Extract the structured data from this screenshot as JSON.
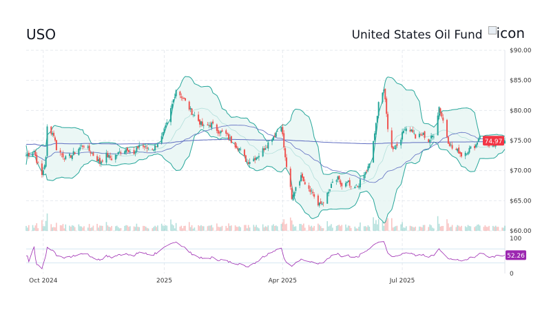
{
  "header": {
    "ticker": "USO",
    "fund_name": "United States Oil Fund",
    "logo_alt": "icon"
  },
  "chart_data": {
    "type": "candlestick",
    "indicators": [
      "Bollinger Bands (20)",
      "SMA 50",
      "SMA 200",
      "Volume",
      "RSI (14)"
    ],
    "x_range": [
      "2024-09-18",
      "2025-09-17"
    ],
    "x_ticks": [
      {
        "date": "2024-10-01",
        "label": "Oct 2024"
      },
      {
        "date": "2025-01-01",
        "label": "2025"
      },
      {
        "date": "2025-04-01",
        "label": "Apr 2025"
      },
      {
        "date": "2025-07-01",
        "label": "Jul 2025"
      }
    ],
    "y_range": [
      60,
      90
    ],
    "y_ticks": [
      "$90.00",
      "$85.00",
      "$80.00",
      "$75.00",
      "$70.00",
      "$65.00",
      "$60.00"
    ],
    "y_tick_values": [
      90,
      85,
      80,
      75,
      70,
      65,
      60
    ],
    "rsi_range": [
      0,
      100
    ],
    "rsi_ticks": [
      "100",
      "0"
    ],
    "rsi_levels": [
      70,
      30
    ],
    "last_price": "74.97",
    "last_rsi": "52.26",
    "grid": true,
    "colors": {
      "up": "#26a69a",
      "down": "#ef5350",
      "band": "#26a69a",
      "band_fill": "#e6f5f2",
      "sma": "#5c6bc0",
      "rsi": "#9c27b0",
      "price_tag": "#f23645",
      "rsi_tag": "#9c27b0"
    },
    "closes": [
      [
        "2024-09-18",
        72.6
      ],
      [
        "2024-09-24",
        73.2
      ],
      [
        "2024-09-27",
        70.9
      ],
      [
        "2024-09-30",
        69.2
      ],
      [
        "2024-10-03",
        72.0
      ],
      [
        "2024-10-04",
        77.2
      ],
      [
        "2024-10-09",
        76.0
      ],
      [
        "2024-10-11",
        73.7
      ],
      [
        "2024-10-18",
        72.0
      ],
      [
        "2024-10-23",
        72.6
      ],
      [
        "2024-10-28",
        73.7
      ],
      [
        "2024-11-01",
        74.3
      ],
      [
        "2024-11-08",
        72.6
      ],
      [
        "2024-11-13",
        71.4
      ],
      [
        "2024-11-18",
        72.6
      ],
      [
        "2024-11-22",
        72.0
      ],
      [
        "2024-11-29",
        73.2
      ],
      [
        "2024-12-04",
        73.7
      ],
      [
        "2024-12-09",
        72.6
      ],
      [
        "2024-12-13",
        74.3
      ],
      [
        "2024-12-19",
        73.7
      ],
      [
        "2024-12-24",
        73.7
      ],
      [
        "2024-12-30",
        75.5
      ],
      [
        "2025-01-03",
        77.7
      ],
      [
        "2025-01-08",
        81.8
      ],
      [
        "2025-01-10",
        83.5
      ],
      [
        "2025-01-16",
        81.8
      ],
      [
        "2025-01-21",
        80.0
      ],
      [
        "2025-01-27",
        78.3
      ],
      [
        "2025-01-31",
        77.2
      ],
      [
        "2025-02-06",
        77.7
      ],
      [
        "2025-02-11",
        76.6
      ],
      [
        "2025-02-17",
        76.0
      ],
      [
        "2025-02-21",
        74.9
      ],
      [
        "2025-02-27",
        73.7
      ],
      [
        "2025-03-05",
        71.4
      ],
      [
        "2025-03-10",
        72.0
      ],
      [
        "2025-03-14",
        72.6
      ],
      [
        "2025-03-20",
        74.3
      ],
      [
        "2025-03-26",
        76.0
      ],
      [
        "2025-03-31",
        77.7
      ],
      [
        "2025-04-03",
        72.0
      ],
      [
        "2025-04-07",
        66.9
      ],
      [
        "2025-04-08",
        65.1
      ],
      [
        "2025-04-11",
        67.4
      ],
      [
        "2025-04-14",
        68.6
      ],
      [
        "2025-04-16",
        69.2
      ],
      [
        "2025-04-18",
        68.0
      ],
      [
        "2025-04-24",
        66.3
      ],
      [
        "2025-04-28",
        64.2
      ],
      [
        "2025-05-01",
        64.6
      ],
      [
        "2025-05-06",
        66.3
      ],
      [
        "2025-05-09",
        68.0
      ],
      [
        "2025-05-13",
        68.6
      ],
      [
        "2025-05-16",
        67.4
      ],
      [
        "2025-05-21",
        68.0
      ],
      [
        "2025-05-23",
        66.9
      ],
      [
        "2025-05-28",
        67.4
      ],
      [
        "2025-06-02",
        69.2
      ],
      [
        "2025-06-06",
        70.9
      ],
      [
        "2025-06-09",
        74.9
      ],
      [
        "2025-06-12",
        78.9
      ],
      [
        "2025-06-13",
        81.8
      ],
      [
        "2025-06-17",
        83.5
      ],
      [
        "2025-06-20",
        77.2
      ],
      [
        "2025-06-23",
        73.7
      ],
      [
        "2025-06-27",
        74.3
      ],
      [
        "2025-07-01",
        76.0
      ],
      [
        "2025-07-03",
        77.2
      ],
      [
        "2025-07-09",
        76.6
      ],
      [
        "2025-07-11",
        75.5
      ],
      [
        "2025-07-17",
        76.0
      ],
      [
        "2025-07-21",
        74.9
      ],
      [
        "2025-07-25",
        76.0
      ],
      [
        "2025-07-29",
        80.6
      ],
      [
        "2025-08-01",
        78.3
      ],
      [
        "2025-08-05",
        74.9
      ],
      [
        "2025-08-08",
        73.7
      ],
      [
        "2025-08-13",
        73.2
      ],
      [
        "2025-08-15",
        72.6
      ],
      [
        "2025-08-22",
        73.7
      ],
      [
        "2025-08-26",
        74.3
      ],
      [
        "2025-08-29",
        76.0
      ],
      [
        "2025-09-03",
        74.9
      ],
      [
        "2025-09-05",
        73.7
      ],
      [
        "2025-09-10",
        74.3
      ],
      [
        "2025-09-12",
        74.9
      ],
      [
        "2025-09-17",
        74.97
      ]
    ]
  }
}
